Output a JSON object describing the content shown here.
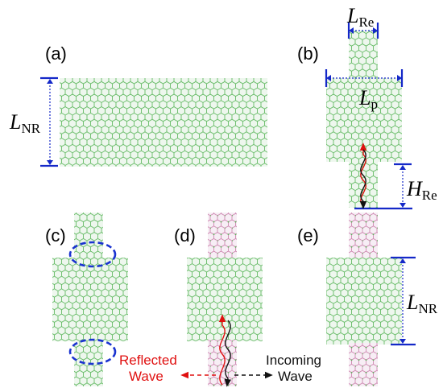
{
  "panels": {
    "a": "(a)",
    "b": "(b)",
    "c": "(c)",
    "d": "(d)",
    "e": "(e)"
  },
  "dimensions": {
    "L_NR_a": {
      "main": "L",
      "sub": "NR"
    },
    "L_Re": {
      "main": "L",
      "sub": "Re"
    },
    "L_p": {
      "main": "L",
      "sub": "p"
    },
    "H_Re": {
      "main": "H",
      "sub": "Re"
    },
    "L_NR_e": {
      "main": "L",
      "sub": "NR"
    }
  },
  "waves": {
    "reflected": [
      "Reflected",
      "Wave"
    ],
    "incoming": [
      "Incoming",
      "Wave"
    ]
  },
  "colors": {
    "graphene": "#4caf50",
    "graphene_bg": "#e8f5e8",
    "impurity": "#d46fa0",
    "dimension": "#1428c8",
    "reflected": "#e01010",
    "incoming": "#111111",
    "ellipse": "#1a33d0"
  }
}
